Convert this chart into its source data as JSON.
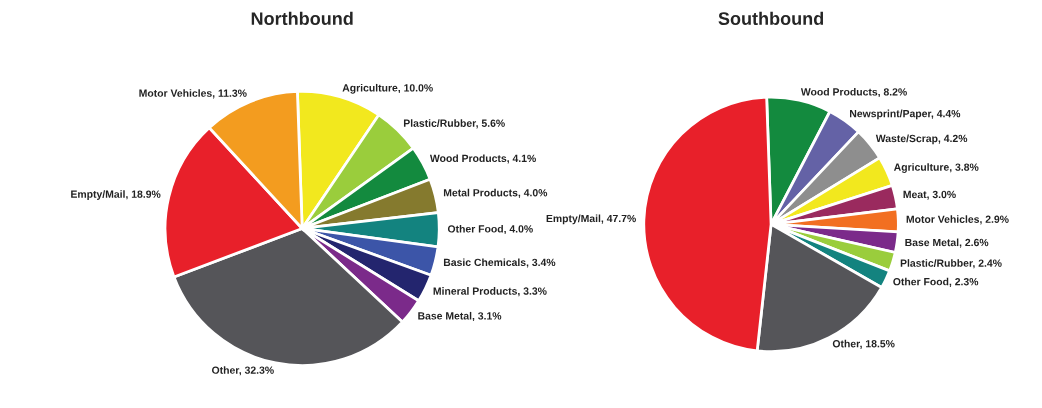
{
  "chart_data": [
    {
      "type": "pie",
      "title": "Northbound",
      "categories": [
        "Agriculture",
        "Plastic/Rubber",
        "Wood Products",
        "Metal Products",
        "Other Food",
        "Basic Chemicals",
        "Mineral Products",
        "Base Metal",
        "Other",
        "Empty/Mail",
        "Motor Vehicles"
      ],
      "values": [
        10.0,
        5.6,
        4.1,
        4.0,
        4.0,
        3.4,
        3.3,
        3.1,
        32.3,
        18.9,
        11.3
      ],
      "value_labels": [
        "10.0%",
        "5.6%",
        "4.1%",
        "4.0%",
        "4.0%",
        "3.4%",
        "3.3%",
        "3.1%",
        "32.3%",
        "18.9%",
        "11.3%"
      ],
      "colors": [
        "#f2e81e",
        "#9acd3c",
        "#138a3e",
        "#857a2e",
        "#13837f",
        "#3c55a8",
        "#23256e",
        "#7b2a8a",
        "#555559",
        "#e8202a",
        "#f39c1f"
      ]
    },
    {
      "type": "pie",
      "title": "Southbound",
      "categories": [
        "Wood Products",
        "Newsprint/Paper",
        "Waste/Scrap",
        "Agriculture",
        "Meat",
        "Motor Vehicles",
        "Base Metal",
        "Plastic/Rubber",
        "Other Food",
        "Other",
        "Empty/Mail"
      ],
      "values": [
        8.2,
        4.4,
        4.2,
        3.8,
        3.0,
        2.9,
        2.6,
        2.4,
        2.3,
        18.5,
        47.7
      ],
      "value_labels": [
        "8.2%",
        "4.4%",
        "4.2%",
        "3.8%",
        "3.0%",
        "2.9%",
        "2.6%",
        "2.4%",
        "2.3%",
        "18.5%",
        "47.7%"
      ],
      "colors": [
        "#138a3e",
        "#6462a6",
        "#8e8e8e",
        "#f2e81e",
        "#9a2a5e",
        "#f26f21",
        "#7b2a8a",
        "#9acd3c",
        "#13837f",
        "#555559",
        "#e8202a"
      ]
    }
  ]
}
